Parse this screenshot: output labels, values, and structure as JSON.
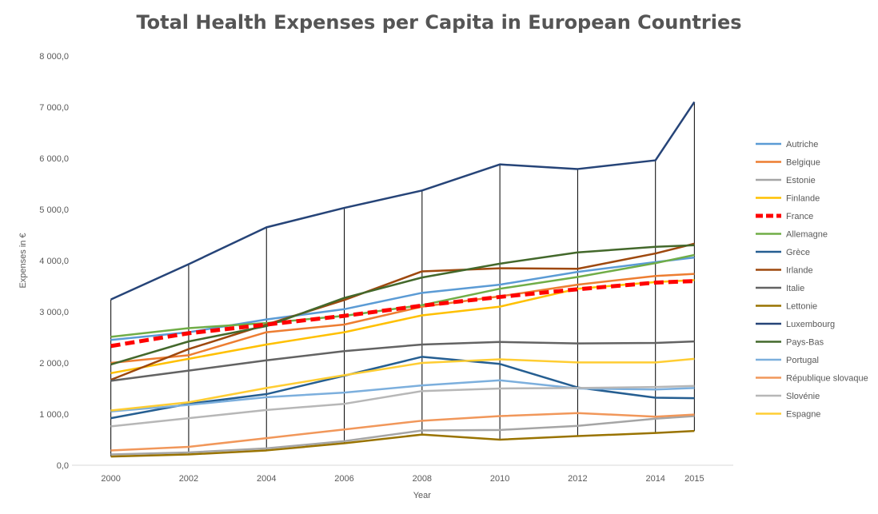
{
  "chart_data": {
    "type": "line",
    "title": "Total Health Expenses per Capita in European Countries",
    "xlabel": "Year",
    "ylabel": "Expenses in €",
    "x": [
      "2000",
      "2002",
      "2004",
      "2006",
      "2008",
      "2010",
      "2012",
      "2014",
      "2015"
    ],
    "ylim": [
      0,
      8000
    ],
    "yticks": [
      0,
      1000,
      2000,
      3000,
      4000,
      5000,
      6000,
      7000,
      8000
    ],
    "ytick_labels": [
      "0,0",
      "1 000,0",
      "2 000,0",
      "3 000,0",
      "4 000,0",
      "5 000,0",
      "6 000,0",
      "7 000,0",
      "8 000,0"
    ],
    "grid": false,
    "drop_lines": true,
    "legend_position": "right",
    "series": [
      {
        "name": "Autriche",
        "color": "#5B9BD5",
        "dashed": false,
        "values": [
          2450,
          2600,
          2850,
          3050,
          3370,
          3530,
          3780,
          3970,
          4060
        ]
      },
      {
        "name": "Belgique",
        "color": "#ED7D31",
        "dashed": false,
        "values": [
          2000,
          2150,
          2600,
          2750,
          3100,
          3300,
          3530,
          3700,
          3740
        ]
      },
      {
        "name": "Estonie",
        "color": "#A5A5A5",
        "dashed": false,
        "values": [
          210,
          250,
          330,
          470,
          680,
          690,
          770,
          910,
          960
        ]
      },
      {
        "name": "Finlande",
        "color": "#FFC000",
        "dashed": false,
        "values": [
          1800,
          2080,
          2360,
          2600,
          2930,
          3100,
          3450,
          3580,
          3620
        ]
      },
      {
        "name": "France",
        "color": "#FF0000",
        "dashed": true,
        "values": [
          2330,
          2580,
          2750,
          2920,
          3120,
          3290,
          3440,
          3570,
          3600
        ]
      },
      {
        "name": "Allemagne",
        "color": "#70AD47",
        "dashed": false,
        "values": [
          2510,
          2680,
          2780,
          2920,
          3130,
          3450,
          3680,
          3950,
          4110
        ]
      },
      {
        "name": "Grèce",
        "color": "#255E91",
        "dashed": false,
        "values": [
          920,
          1200,
          1390,
          1750,
          2120,
          1980,
          1520,
          1320,
          1310
        ]
      },
      {
        "name": "Irlande",
        "color": "#9E480E",
        "dashed": false,
        "values": [
          1670,
          2270,
          2750,
          3230,
          3790,
          3850,
          3840,
          4140,
          4330
        ]
      },
      {
        "name": "Italie",
        "color": "#636363",
        "dashed": false,
        "values": [
          1650,
          1850,
          2050,
          2230,
          2360,
          2410,
          2380,
          2390,
          2420
        ]
      },
      {
        "name": "Lettonie",
        "color": "#997300",
        "dashed": false,
        "values": [
          170,
          210,
          290,
          430,
          600,
          500,
          570,
          630,
          670
        ]
      },
      {
        "name": "Luxembourg",
        "color": "#264478",
        "dashed": false,
        "values": [
          3240,
          3930,
          4650,
          5030,
          5370,
          5880,
          5790,
          5960,
          7100
        ]
      },
      {
        "name": "Pays-Bas",
        "color": "#43682B",
        "dashed": false,
        "values": [
          1970,
          2420,
          2720,
          3270,
          3670,
          3940,
          4160,
          4270,
          4300
        ]
      },
      {
        "name": "Portugal",
        "color": "#7CAFDD",
        "dashed": false,
        "values": [
          1050,
          1180,
          1330,
          1420,
          1560,
          1660,
          1500,
          1480,
          1510
        ]
      },
      {
        "name": "République slovaque",
        "color": "#F1975A",
        "dashed": false,
        "values": [
          290,
          360,
          530,
          700,
          870,
          960,
          1020,
          950,
          990
        ]
      },
      {
        "name": "Slovénie",
        "color": "#B7B7B7",
        "dashed": false,
        "values": [
          760,
          920,
          1080,
          1200,
          1450,
          1500,
          1510,
          1530,
          1550
        ]
      },
      {
        "name": "Espagne",
        "color": "#FFCD33",
        "dashed": false,
        "values": [
          1070,
          1230,
          1510,
          1760,
          2000,
          2070,
          2010,
          2010,
          2080
        ]
      }
    ]
  }
}
